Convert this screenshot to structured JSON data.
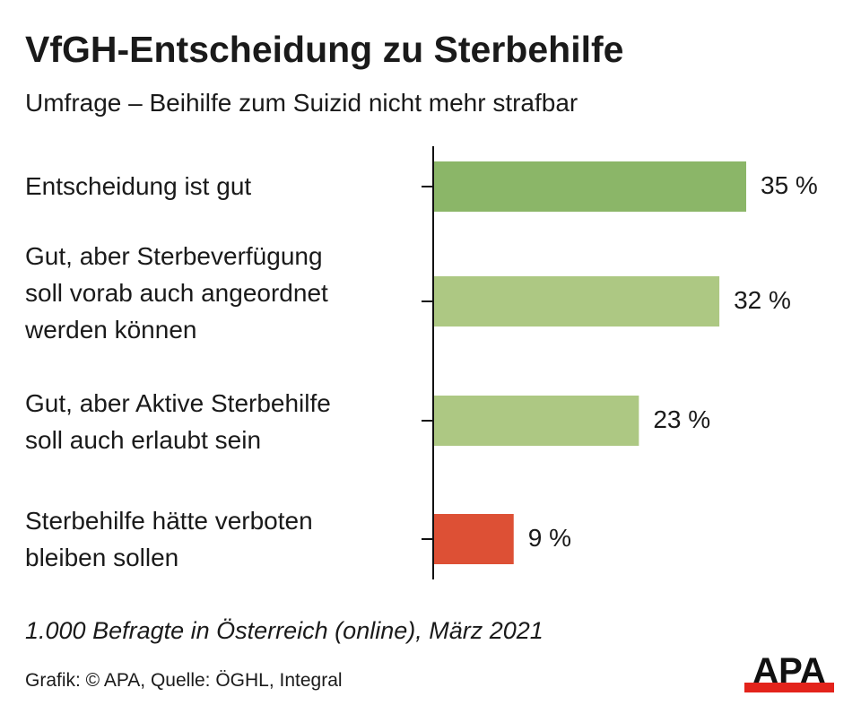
{
  "chart_data": {
    "type": "bar",
    "orientation": "horizontal",
    "title": "VfGH-Entscheidung zu Sterbehilfe",
    "subtitle": "Umfrage – Beihilfe zum Suizid nicht mehr strafbar",
    "categories": [
      "Entscheidung ist gut",
      "Gut, aber Sterbeverfügung\nsoll vorab auch angeordnet\nwerden können",
      "Gut, aber Aktive Sterbehilfe\nsoll auch erlaubt sein",
      "Sterbehilfe hätte verboten\nbleiben sollen"
    ],
    "values": [
      35,
      32,
      23,
      9
    ],
    "value_labels": [
      "35 %",
      "32 %",
      "23 %",
      "9 %"
    ],
    "colors": [
      "#8bb668",
      "#adc883",
      "#adc883",
      "#dd5035"
    ],
    "xlim": [
      0,
      40
    ],
    "grid": false,
    "note": "1.000 Befragte in Österreich (online), März 2021",
    "source": "Grafik: © APA, Quelle: ÖGHL, Integral"
  },
  "logo": {
    "text": "APA",
    "colors": [
      "#111111",
      "#e3231b"
    ]
  }
}
